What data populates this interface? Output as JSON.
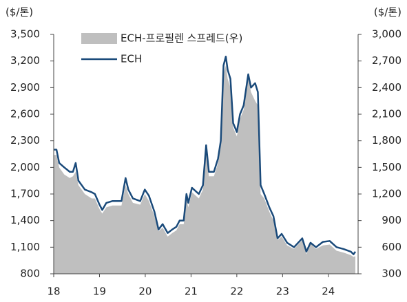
{
  "chart_data": {
    "type": "line",
    "y_label": "($/톤)",
    "y2_label": "($/톤)",
    "x": [
      18.0,
      18.06,
      18.12,
      18.23,
      18.35,
      18.42,
      18.48,
      18.54,
      18.68,
      18.83,
      18.9,
      19.0,
      19.06,
      19.15,
      19.28,
      19.48,
      19.57,
      19.63,
      19.73,
      19.89,
      19.99,
      20.08,
      20.2,
      20.29,
      20.38,
      20.49,
      20.59,
      20.68,
      20.75,
      20.84,
      20.9,
      20.94,
      21.02,
      21.17,
      21.26,
      21.33,
      21.39,
      21.5,
      21.59,
      21.65,
      21.71,
      21.76,
      21.8,
      21.86,
      21.92,
      22.0,
      22.07,
      22.15,
      22.25,
      22.31,
      22.4,
      22.46,
      22.52,
      22.6,
      22.71,
      22.8,
      22.89,
      22.98,
      23.1,
      23.25,
      23.43,
      23.52,
      23.61,
      23.73,
      23.88,
      24.03,
      24.18,
      24.33,
      24.49,
      24.55,
      24.59
    ],
    "series": [
      {
        "name": "ECH-프로필렌 스프레드(우)",
        "kind": "area",
        "axis": "y2",
        "color": "#bfbfbf",
        "values": [
          1640,
          1640,
          1500,
          1420,
          1380,
          1400,
          1450,
          1300,
          1200,
          1150,
          1150,
          1030,
          980,
          1050,
          1070,
          1070,
          1300,
          1200,
          1100,
          1080,
          1200,
          1120,
          950,
          780,
          820,
          720,
          760,
          790,
          860,
          860,
          1150,
          1050,
          1220,
          1150,
          1250,
          1700,
          1400,
          1400,
          1550,
          1750,
          2550,
          2650,
          2500,
          2400,
          1950,
          1850,
          2050,
          2150,
          2500,
          2350,
          2250,
          2200,
          1200,
          1150,
          1000,
          900,
          680,
          720,
          620,
          580,
          680,
          520,
          640,
          580,
          620,
          630,
          560,
          540,
          510,
          490,
          500
        ]
      },
      {
        "name": "ECH",
        "kind": "line",
        "axis": "y",
        "color": "#1a4a7a",
        "values": [
          2200,
          2200,
          2050,
          2000,
          1950,
          1950,
          2050,
          1850,
          1750,
          1720,
          1700,
          1580,
          1520,
          1600,
          1620,
          1620,
          1880,
          1750,
          1650,
          1620,
          1750,
          1680,
          1500,
          1300,
          1360,
          1260,
          1300,
          1330,
          1400,
          1400,
          1700,
          1600,
          1770,
          1700,
          1800,
          2250,
          1950,
          1950,
          2100,
          2300,
          3150,
          3250,
          3100,
          3000,
          2500,
          2400,
          2600,
          2700,
          3050,
          2900,
          2950,
          2850,
          1800,
          1700,
          1550,
          1450,
          1200,
          1250,
          1150,
          1100,
          1200,
          1050,
          1150,
          1100,
          1160,
          1170,
          1100,
          1080,
          1050,
          1020,
          1050
        ]
      }
    ],
    "xlim": [
      18,
      24.65
    ],
    "xticks": [
      18,
      19,
      20,
      21,
      22,
      23,
      24
    ],
    "ylim": [
      800,
      3500
    ],
    "yticks": [
      800,
      {
        "value": 1100,
        "label": "1,100"
      },
      {
        "value": 1400,
        "label": "1,400"
      },
      {
        "value": 1700,
        "label": "1,700"
      },
      {
        "value": 2000,
        "label": "2,000"
      },
      {
        "value": 2300,
        "label": "2,300"
      },
      {
        "value": 2600,
        "label": "2,600"
      },
      {
        "value": 2900,
        "label": "2,900"
      },
      {
        "value": 3200,
        "label": "3,200"
      },
      {
        "value": 3500,
        "label": "3,500"
      }
    ],
    "y2lim": [
      300,
      3000
    ],
    "y2ticks": [
      300,
      600,
      900,
      {
        "value": 1200,
        "label": "1,200"
      },
      {
        "value": 1500,
        "label": "1,500"
      },
      {
        "value": 1800,
        "label": "1,800"
      },
      {
        "value": 2100,
        "label": "2,100"
      },
      {
        "value": 2400,
        "label": "2,400"
      },
      {
        "value": 2700,
        "label": "2,700"
      },
      {
        "value": 3000,
        "label": "3,000"
      }
    ],
    "grid": false,
    "legend": "upper left"
  }
}
